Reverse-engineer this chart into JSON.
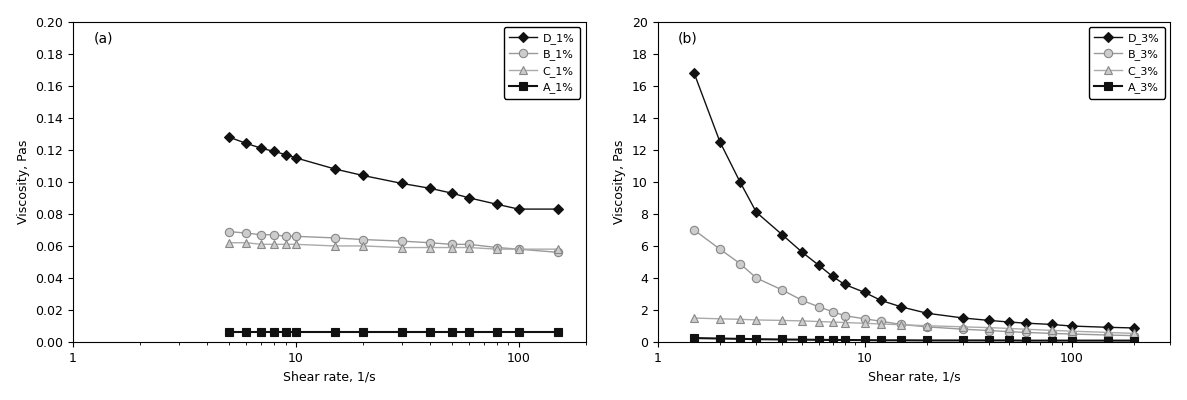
{
  "plot_a": {
    "label": "(a)",
    "xlabel": "Shear rate, 1/s",
    "ylabel": "Viscosity, Pas",
    "xlim": [
      1,
      200
    ],
    "ylim": [
      0,
      0.2
    ],
    "yticks": [
      0.0,
      0.02,
      0.04,
      0.06,
      0.08,
      0.1,
      0.12,
      0.14,
      0.16,
      0.18,
      0.2
    ],
    "series": [
      {
        "name": "D_1%",
        "x": [
          5,
          6,
          7,
          8,
          9,
          10,
          15,
          20,
          30,
          40,
          50,
          60,
          80,
          100,
          150
        ],
        "y": [
          0.128,
          0.124,
          0.121,
          0.119,
          0.117,
          0.115,
          0.108,
          0.104,
          0.099,
          0.096,
          0.093,
          0.09,
          0.086,
          0.083,
          0.083
        ],
        "color": "#111111",
        "markerfacecolor": "#111111",
        "markeredgecolor": "#111111",
        "marker": "D",
        "markersize": 5,
        "linestyle": "-",
        "linewidth": 1.0
      },
      {
        "name": "B_1%",
        "x": [
          5,
          6,
          7,
          8,
          9,
          10,
          15,
          20,
          30,
          40,
          50,
          60,
          80,
          100,
          150
        ],
        "y": [
          0.069,
          0.068,
          0.067,
          0.067,
          0.066,
          0.066,
          0.065,
          0.064,
          0.063,
          0.062,
          0.061,
          0.061,
          0.059,
          0.058,
          0.056
        ],
        "color": "#999999",
        "markerfacecolor": "#cccccc",
        "markeredgecolor": "#888888",
        "marker": "o",
        "markersize": 6,
        "linestyle": "-",
        "linewidth": 1.0
      },
      {
        "name": "C_1%",
        "x": [
          5,
          6,
          7,
          8,
          9,
          10,
          15,
          20,
          30,
          40,
          50,
          60,
          80,
          100,
          150
        ],
        "y": [
          0.062,
          0.062,
          0.061,
          0.061,
          0.061,
          0.061,
          0.06,
          0.06,
          0.059,
          0.059,
          0.059,
          0.059,
          0.058,
          0.058,
          0.058
        ],
        "color": "#aaaaaa",
        "markerfacecolor": "#cccccc",
        "markeredgecolor": "#888888",
        "marker": "^",
        "markersize": 6,
        "linestyle": "-",
        "linewidth": 1.0
      },
      {
        "name": "A_1%",
        "x": [
          5,
          6,
          7,
          8,
          9,
          10,
          15,
          20,
          30,
          40,
          50,
          60,
          80,
          100,
          150
        ],
        "y": [
          0.006,
          0.006,
          0.006,
          0.006,
          0.006,
          0.006,
          0.006,
          0.006,
          0.006,
          0.006,
          0.006,
          0.006,
          0.006,
          0.006,
          0.006
        ],
        "color": "#111111",
        "markerfacecolor": "#111111",
        "markeredgecolor": "#111111",
        "marker": "s",
        "markersize": 6,
        "linestyle": "-",
        "linewidth": 1.5
      }
    ]
  },
  "plot_b": {
    "label": "(b)",
    "xlabel": "Shear rate, 1/s",
    "ylabel": "Viscosity, Pas",
    "xlim": [
      1,
      300
    ],
    "ylim": [
      0,
      20
    ],
    "yticks": [
      0,
      2,
      4,
      6,
      8,
      10,
      12,
      14,
      16,
      18,
      20
    ],
    "series": [
      {
        "name": "D_3%",
        "x": [
          1.5,
          2,
          2.5,
          3,
          4,
          5,
          6,
          7,
          8,
          10,
          12,
          15,
          20,
          30,
          40,
          50,
          60,
          80,
          100,
          150,
          200
        ],
        "y": [
          16.8,
          12.5,
          10.0,
          8.1,
          6.7,
          5.6,
          4.8,
          4.1,
          3.6,
          3.1,
          2.6,
          2.2,
          1.8,
          1.5,
          1.35,
          1.25,
          1.18,
          1.1,
          1.0,
          0.92,
          0.88
        ],
        "color": "#111111",
        "markerfacecolor": "#111111",
        "markeredgecolor": "#111111",
        "marker": "D",
        "markersize": 5,
        "linestyle": "-",
        "linewidth": 1.0
      },
      {
        "name": "B_3%",
        "x": [
          1.5,
          2,
          2.5,
          3,
          4,
          5,
          6,
          7,
          8,
          10,
          12,
          15,
          20,
          30,
          40,
          50,
          60,
          80,
          100,
          150,
          200
        ],
        "y": [
          7.0,
          5.8,
          4.9,
          4.0,
          3.25,
          2.6,
          2.2,
          1.9,
          1.65,
          1.45,
          1.3,
          1.1,
          0.95,
          0.8,
          0.72,
          0.65,
          0.6,
          0.54,
          0.5,
          0.44,
          0.4
        ],
        "color": "#999999",
        "markerfacecolor": "#cccccc",
        "markeredgecolor": "#888888",
        "marker": "o",
        "markersize": 6,
        "linestyle": "-",
        "linewidth": 1.0
      },
      {
        "name": "C_3%",
        "x": [
          1.5,
          2,
          2.5,
          3,
          4,
          5,
          6,
          7,
          8,
          10,
          12,
          15,
          20,
          30,
          40,
          50,
          60,
          80,
          100,
          150,
          200
        ],
        "y": [
          1.5,
          1.45,
          1.42,
          1.38,
          1.35,
          1.32,
          1.28,
          1.25,
          1.22,
          1.17,
          1.13,
          1.08,
          1.02,
          0.95,
          0.9,
          0.85,
          0.8,
          0.73,
          0.68,
          0.6,
          0.54
        ],
        "color": "#aaaaaa",
        "markerfacecolor": "#cccccc",
        "markeredgecolor": "#888888",
        "marker": "^",
        "markersize": 6,
        "linestyle": "-",
        "linewidth": 1.0
      },
      {
        "name": "A_3%",
        "x": [
          1.5,
          2,
          2.5,
          3,
          4,
          5,
          6,
          7,
          8,
          10,
          12,
          15,
          20,
          30,
          40,
          50,
          60,
          80,
          100,
          150,
          200
        ],
        "y": [
          0.25,
          0.22,
          0.2,
          0.18,
          0.16,
          0.15,
          0.14,
          0.13,
          0.13,
          0.12,
          0.11,
          0.11,
          0.1,
          0.1,
          0.1,
          0.1,
          0.09,
          0.09,
          0.09,
          0.09,
          0.09
        ],
        "color": "#111111",
        "markerfacecolor": "#111111",
        "markeredgecolor": "#111111",
        "marker": "s",
        "markersize": 6,
        "linestyle": "-",
        "linewidth": 1.5
      }
    ]
  },
  "background_color": "#ffffff",
  "font_size": 9,
  "legend_fontsize": 8,
  "tick_fontsize": 9
}
